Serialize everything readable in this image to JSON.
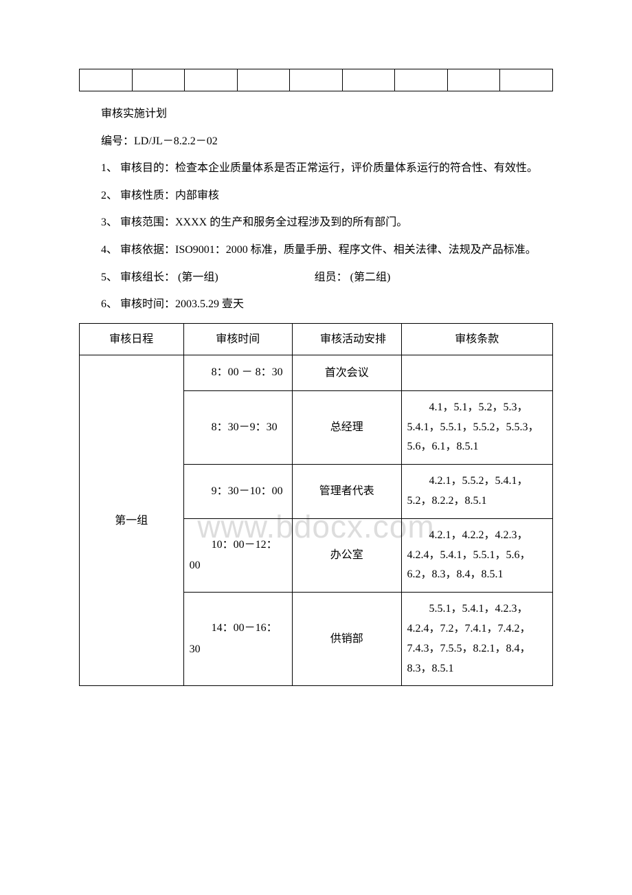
{
  "watermark": "www.bdocx.com",
  "empty_table": {
    "cols": 9
  },
  "heading": "审核实施计划",
  "doc_no": "编号：LD/JL－8.2.2－02",
  "items": {
    "i1": "1、 审核目的：检查本企业质量体系是否正常运行，评价质量体系运行的符合性、有效性。",
    "i2": "2、 审核性质：内部审核",
    "i3": "3、 审核范围：XXXX 的生产和服务全过程涉及到的所有部门。",
    "i4": "4、 审核依据：ISO9001：2000 标准，质量手册、程序文件、相关法律、法规及产品标准。",
    "i5a": "5、 审核组长：   (第一组)",
    "i5b": "组员： (第二组)",
    "i6": "6、 审核时间：2003.5.29    壹天"
  },
  "table_headers": {
    "h1": "审核日程",
    "h2": "审核时间",
    "h3": "审核活动安排",
    "h4": "审核条款"
  },
  "group_label": "第一组",
  "rows": [
    {
      "time": "8：00 － 8：30",
      "activity": "首次会议",
      "clauses": ""
    },
    {
      "time": "8：30－9：30",
      "activity": "总经理",
      "clauses": "4.1，5.1，5.2，5.3，5.4.1，5.5.1，5.5.2，5.5.3，5.6，6.1，8.5.1"
    },
    {
      "time": "9：30－10：00",
      "activity": "管理者代表",
      "clauses": "4.2.1，5.5.2，5.4.1，5.2，8.2.2，8.5.1"
    },
    {
      "time": "10：00－12：00",
      "activity": "办公室",
      "clauses": "4.2.1，4.2.2，4.2.3，4.2.4，5.4.1，5.5.1，5.6，6.2，8.3，8.4，8.5.1"
    },
    {
      "time": "14：00－16：30",
      "activity": "供销部",
      "clauses": "5.5.1，5.4.1，4.2.3，4.2.4，7.2，7.4.1，7.4.2，7.4.3，7.5.5，8.2.1，8.4，8.3，8.5.1"
    }
  ]
}
